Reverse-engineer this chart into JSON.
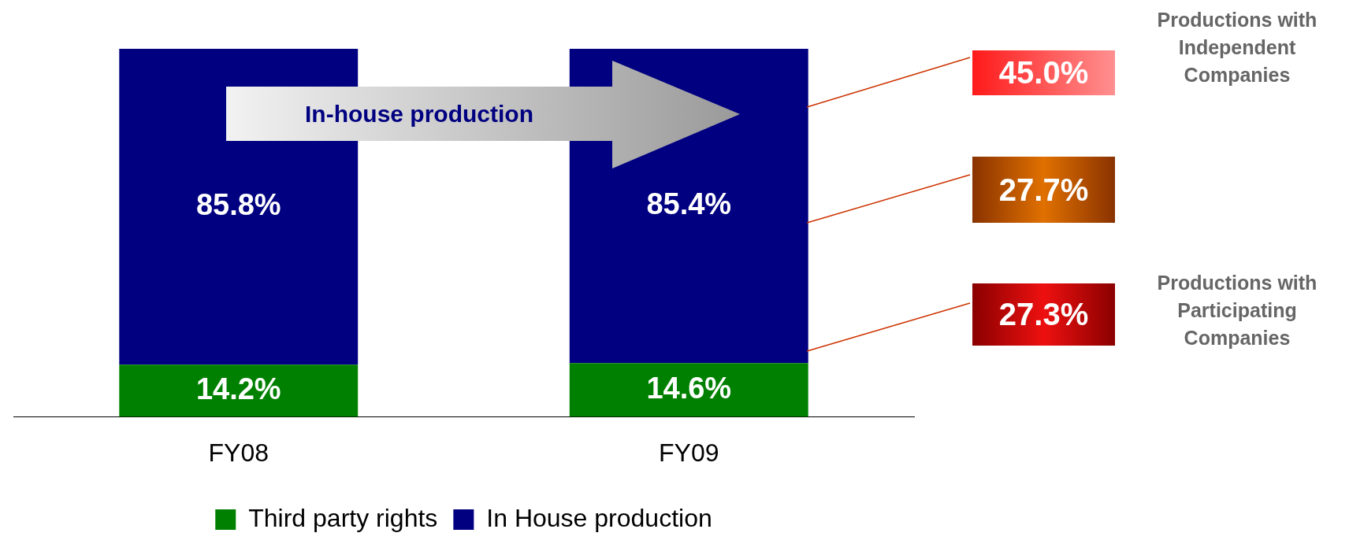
{
  "chart_data": {
    "type": "bar",
    "stacked": true,
    "categories": [
      "FY08",
      "FY09"
    ],
    "series": [
      {
        "name": "Third party rights",
        "color": "#008000",
        "values": [
          14.2,
          14.6
        ],
        "value_labels": [
          "14.2%",
          "14.6%"
        ]
      },
      {
        "name": "In House production",
        "color": "#000080",
        "values": [
          85.8,
          85.4
        ],
        "value_labels": [
          "85.8%",
          "85.4%"
        ]
      }
    ],
    "legend": "bottom",
    "annotations": [
      "In-house production",
      "45.0%",
      "Productions with Independent Companies",
      "27.7%",
      "27.3%",
      "Productions with Participating Companies"
    ]
  }
}
